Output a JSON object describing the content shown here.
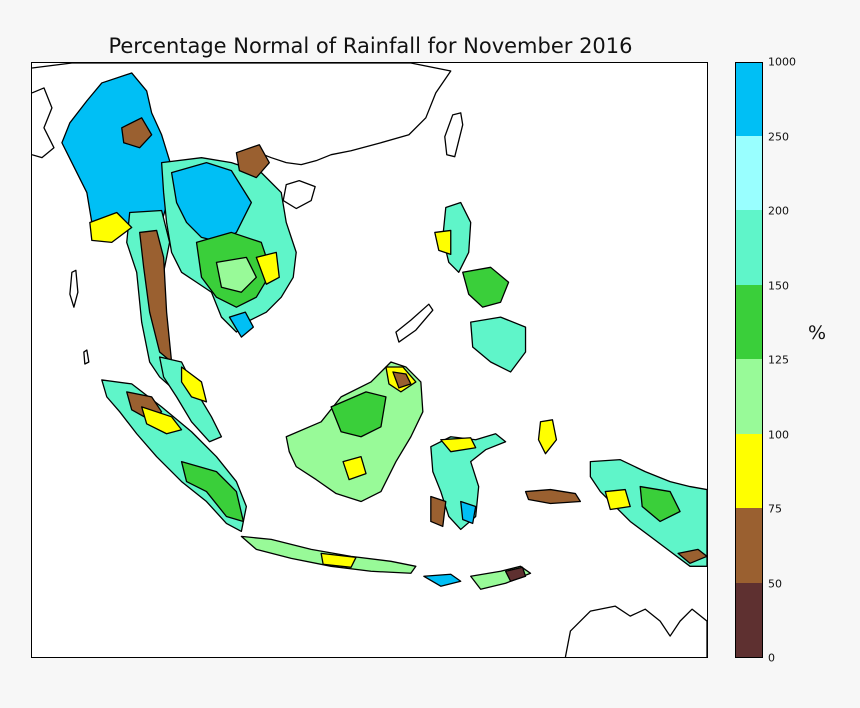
{
  "map": {
    "title": "Percentage Normal of Rainfall for November 2016",
    "units_label": "%",
    "colorbar": {
      "tick_labels": [
        "0",
        "50",
        "75",
        "100",
        "125",
        "150",
        "200",
        "250",
        "1000"
      ],
      "bands": [
        {
          "range": "0-50",
          "color": "#5e3030"
        },
        {
          "range": "50-75",
          "color": "#9a6030"
        },
        {
          "range": "75-100",
          "color": "#ffff00"
        },
        {
          "range": "100-125",
          "color": "#98fa98"
        },
        {
          "range": "125-150",
          "color": "#3acf3a"
        },
        {
          "range": "150-200",
          "color": "#5ff5c9"
        },
        {
          "range": "200-250",
          "color": "#99ffff"
        },
        {
          "range": "250-1000",
          "color": "#00bff5"
        }
      ]
    },
    "land_outline_color": "#000000",
    "ocean_color": "#ffffff"
  }
}
